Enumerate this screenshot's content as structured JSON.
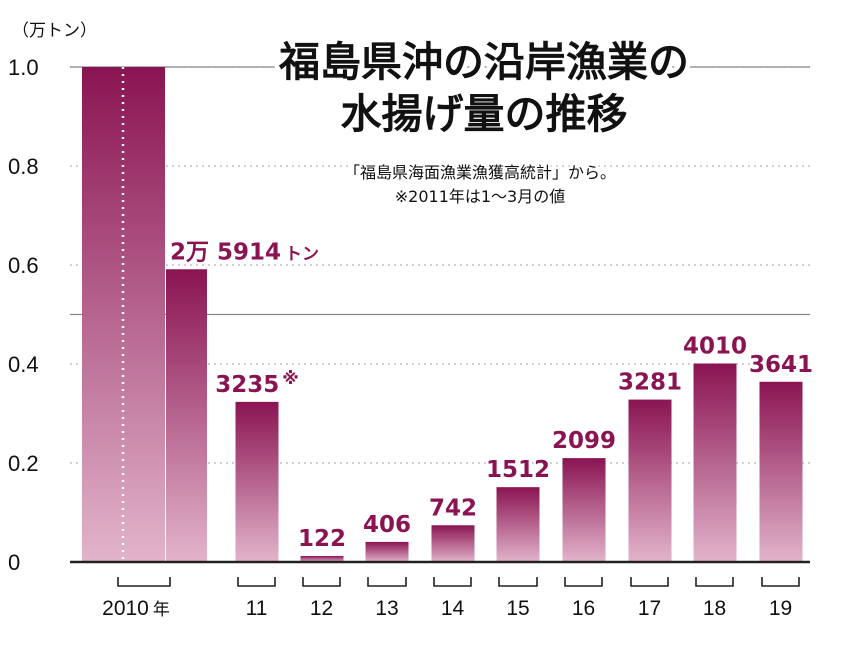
{
  "chart_data": {
    "type": "bar",
    "title_lines": [
      "福島県沖の沿岸漁業の",
      "水揚げ量の推移"
    ],
    "note_lines": [
      "「福島県海面漁業漁獲高統計」から。",
      "※2011年は1～3月の値"
    ],
    "unit_label": "（万トン）",
    "categories": [
      "2010",
      "11",
      "12",
      "13",
      "14",
      "15",
      "16",
      "17",
      "18",
      "19"
    ],
    "x_unit_suffix": "年",
    "values": [
      25914,
      3235,
      122,
      406,
      742,
      1512,
      2099,
      3281,
      4010,
      3641
    ],
    "data_labels": [
      "2万 5914",
      "3235",
      "122",
      "406",
      "742",
      "1512",
      "2099",
      "3281",
      "4010",
      "3641"
    ],
    "data_label_suffix": [
      "トン",
      "※",
      "",
      "",
      "",
      "",
      "",
      "",
      "",
      ""
    ],
    "yticks": [
      "1.0",
      "0.8",
      "0.6",
      "0.4",
      "0.2",
      "0"
    ],
    "ylim": [
      0,
      1.0
    ],
    "ylim_units": "万トン",
    "first_bar_axis_break": true,
    "grid": true,
    "colors": {
      "bar_top": "#8a1452",
      "bar_bottom": "#e2b4cb",
      "label": "#8a1452",
      "axis": "#222222",
      "grid": "#b5b5b5"
    }
  }
}
